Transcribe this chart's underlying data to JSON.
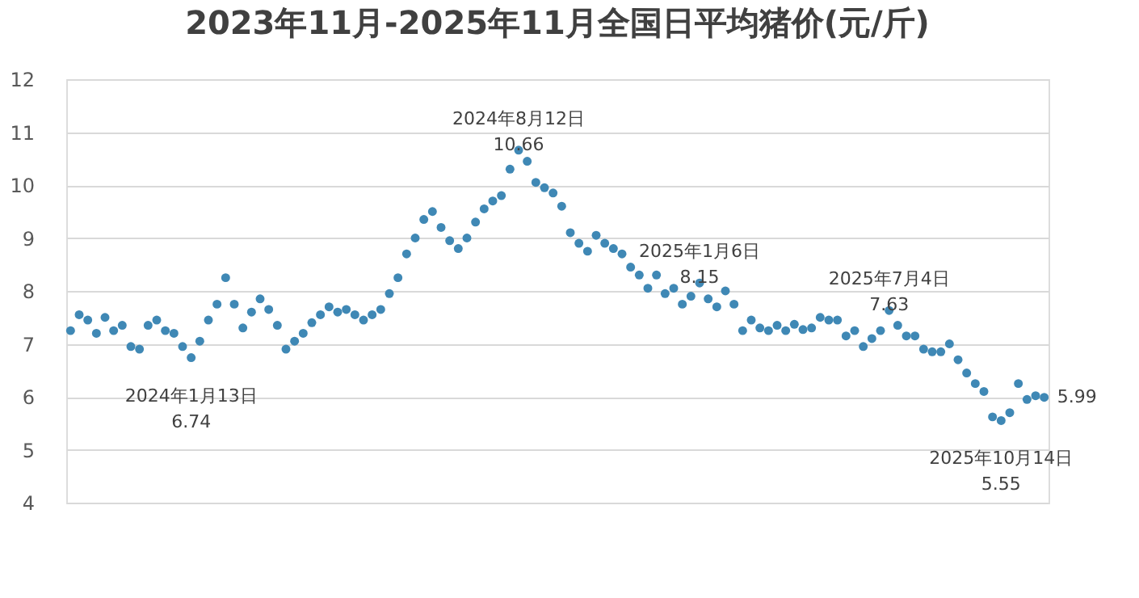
{
  "chart_data": {
    "type": "scatter",
    "title": "2023年11月-2025年11月全国日平均猪价(元/斤)",
    "categories": [
      null,
      null,
      null,
      null,
      null,
      null,
      null,
      null,
      null,
      null,
      null,
      null,
      null,
      null,
      null,
      null,
      null,
      null,
      null,
      null,
      null,
      null,
      null,
      null,
      null,
      null,
      null,
      null,
      null,
      null,
      null,
      null,
      null,
      null,
      null,
      null,
      null,
      null,
      null,
      null,
      null,
      null,
      null,
      null,
      null,
      null,
      null,
      null,
      null,
      null,
      null,
      null,
      null,
      null,
      null,
      null,
      null,
      null,
      null,
      null,
      null,
      null,
      null,
      null,
      null,
      null,
      null,
      null,
      null,
      null,
      null,
      null,
      null,
      null,
      null,
      null,
      null,
      null,
      null,
      null,
      null,
      null,
      null,
      null,
      null,
      null,
      null,
      null,
      null,
      null,
      null,
      null,
      null,
      null,
      null,
      null,
      null,
      null,
      null,
      null,
      null,
      null,
      null,
      null,
      null,
      null,
      null,
      null,
      null,
      null,
      null,
      null,
      null,
      null
    ],
    "series": [
      {
        "color": "#3f88b5",
        "values": [
          7.25,
          7.55,
          7.45,
          7.2,
          7.5,
          7.25,
          7.35,
          6.95,
          6.9,
          7.35,
          7.45,
          7.25,
          7.2,
          6.95,
          6.74,
          7.05,
          7.45,
          7.75,
          8.25,
          7.75,
          7.3,
          7.6,
          7.85,
          7.65,
          7.35,
          6.9,
          7.05,
          7.2,
          7.4,
          7.55,
          7.7,
          7.6,
          7.65,
          7.55,
          7.45,
          7.55,
          7.65,
          7.95,
          8.25,
          8.7,
          9.0,
          9.35,
          9.5,
          9.2,
          8.95,
          8.8,
          9.0,
          9.3,
          9.55,
          9.7,
          9.8,
          10.3,
          10.66,
          10.45,
          10.05,
          9.95,
          9.85,
          9.6,
          9.1,
          8.9,
          8.75,
          9.05,
          8.9,
          8.8,
          8.7,
          8.45,
          8.3,
          8.05,
          8.3,
          7.95,
          8.05,
          7.75,
          7.9,
          8.15,
          7.85,
          7.7,
          8.0,
          7.75,
          7.25,
          7.45,
          7.3,
          7.25,
          7.35,
          7.25,
          7.37,
          7.27,
          7.3,
          7.5,
          7.45,
          7.45,
          7.15,
          7.25,
          6.95,
          7.1,
          7.25,
          7.63,
          7.35,
          7.15,
          7.15,
          6.9,
          6.85,
          6.85,
          7.0,
          6.7,
          6.45,
          6.25,
          6.1,
          5.62,
          5.55,
          5.7,
          6.25,
          5.95,
          6.02,
          5.99
        ]
      }
    ],
    "ylim": [
      4,
      12
    ],
    "yticks": [
      4,
      5,
      6,
      7,
      8,
      9,
      10,
      11,
      12
    ],
    "grid": "y",
    "marker": "circle",
    "tick_labels": "y",
    "annotations": [
      {
        "text": "2024年1月13日\n6.74",
        "y": 6.74
      },
      {
        "text": "2024年8月12日\n10.66",
        "y": 10.66
      },
      {
        "text": "2025年1月6日\n8.15",
        "y": 8.15
      },
      {
        "text": "2025年7月4日\n7.63",
        "y": 7.63
      },
      {
        "text": "2025年10月14日\n5.55",
        "y": 5.55
      },
      "5.99"
    ]
  }
}
